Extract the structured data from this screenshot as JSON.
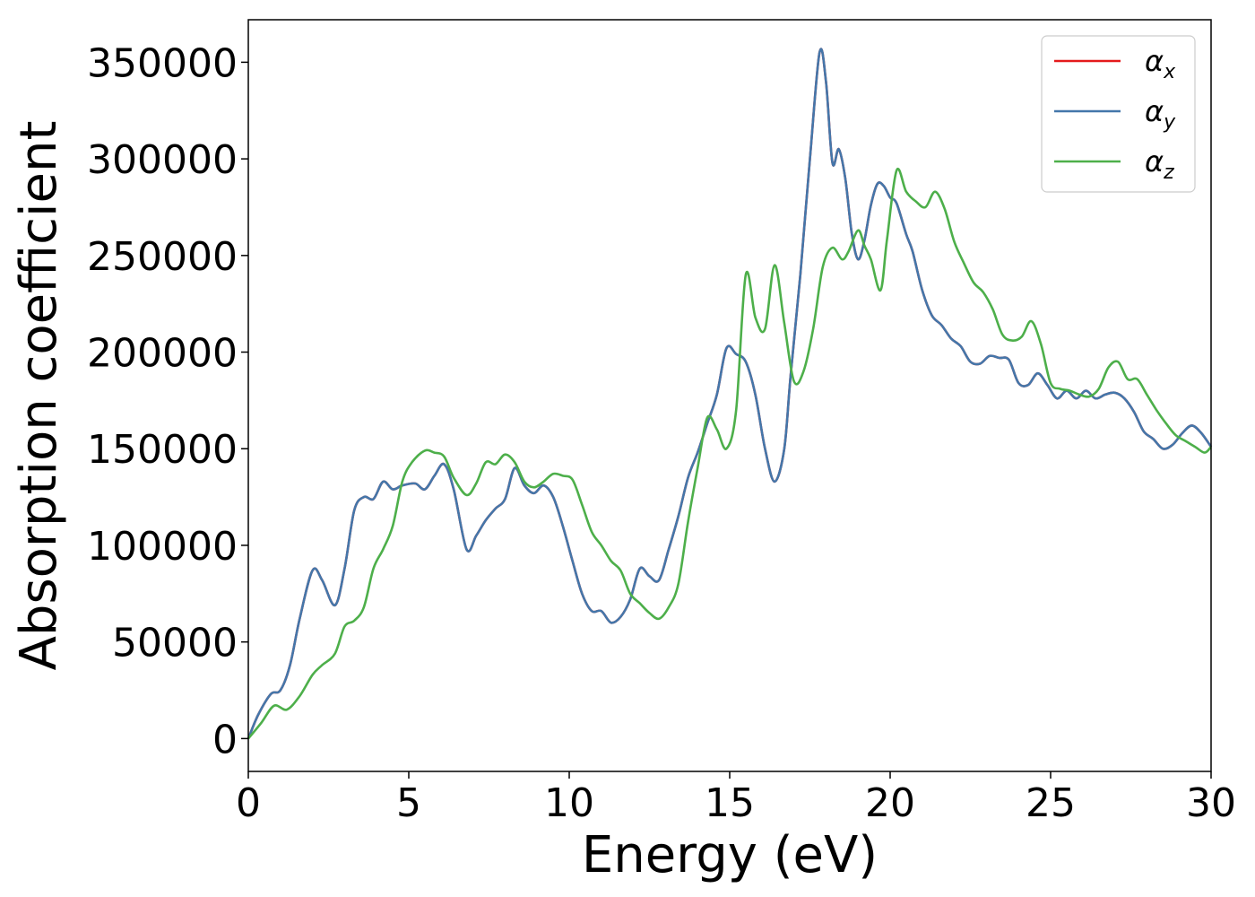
{
  "chart_data": {
    "type": "line",
    "xlabel": "Energy (eV)",
    "ylabel": "Absorption coefficient",
    "xlim": [
      0,
      30
    ],
    "ylim": [
      -17000,
      372000
    ],
    "xticks": [
      0,
      5,
      10,
      15,
      20,
      25,
      30
    ],
    "yticks": [
      0,
      50000,
      100000,
      150000,
      200000,
      250000,
      300000,
      350000
    ],
    "legend_position": "top-right",
    "grid": false,
    "series": [
      {
        "name": "α_x",
        "name_base": "α",
        "name_sub": "x",
        "color": "#e41a1c",
        "x": [
          0,
          0.3,
          0.7,
          1.0,
          1.3,
          1.6,
          2.0,
          2.3,
          2.7,
          3.0,
          3.3,
          3.6,
          3.9,
          4.2,
          4.5,
          4.8,
          5.2,
          5.5,
          5.8,
          6.1,
          6.4,
          6.8,
          7.1,
          7.4,
          7.7,
          8.0,
          8.3,
          8.6,
          8.9,
          9.2,
          9.5,
          9.8,
          10.1,
          10.4,
          10.7,
          11.0,
          11.3,
          11.6,
          11.9,
          12.2,
          12.5,
          12.8,
          13.1,
          13.4,
          13.7,
          14.0,
          14.3,
          14.6,
          14.9,
          15.2,
          15.5,
          15.8,
          16.1,
          16.4,
          16.7,
          16.9,
          17.2,
          17.5,
          17.8,
          18.0,
          18.2,
          18.4,
          18.6,
          18.8,
          19.0,
          19.2,
          19.4,
          19.6,
          19.8,
          20.0,
          20.2,
          20.5,
          20.7,
          21.0,
          21.3,
          21.6,
          21.9,
          22.2,
          22.5,
          22.8,
          23.1,
          23.4,
          23.7,
          24.0,
          24.3,
          24.6,
          24.9,
          25.2,
          25.5,
          25.8,
          26.1,
          26.4,
          26.7,
          27.0,
          27.3,
          27.6,
          27.9,
          28.2,
          28.5,
          28.8,
          29.1,
          29.4,
          29.7,
          30.0
        ],
        "y": [
          0,
          12000,
          23000,
          25000,
          38000,
          62000,
          87000,
          82000,
          69000,
          88000,
          118000,
          125000,
          124000,
          133000,
          129000,
          131000,
          132000,
          129000,
          136000,
          142000,
          129000,
          98000,
          105000,
          113000,
          119000,
          124000,
          140000,
          131000,
          127000,
          131000,
          125000,
          110000,
          92000,
          75000,
          66000,
          66000,
          60000,
          63000,
          72000,
          88000,
          84000,
          82000,
          98000,
          115000,
          135000,
          148000,
          163000,
          178000,
          202000,
          199000,
          195000,
          178000,
          150000,
          133000,
          150000,
          188000,
          240000,
          300000,
          355000,
          340000,
          298000,
          305000,
          290000,
          262000,
          248000,
          258000,
          276000,
          287000,
          286000,
          280000,
          277000,
          261000,
          252000,
          232000,
          219000,
          214000,
          207000,
          203000,
          195000,
          194000,
          198000,
          197000,
          196000,
          184000,
          183000,
          189000,
          183000,
          176000,
          180000,
          176000,
          180000,
          176000,
          178000,
          179000,
          176000,
          169000,
          159000,
          155000,
          150000,
          152000,
          158000,
          162000,
          158000,
          151000
        ]
      },
      {
        "name": "α_y",
        "name_base": "α",
        "name_sub": "y",
        "color": "#4477aa",
        "x": [
          0,
          0.3,
          0.7,
          1.0,
          1.3,
          1.6,
          2.0,
          2.3,
          2.7,
          3.0,
          3.3,
          3.6,
          3.9,
          4.2,
          4.5,
          4.8,
          5.2,
          5.5,
          5.8,
          6.1,
          6.4,
          6.8,
          7.1,
          7.4,
          7.7,
          8.0,
          8.3,
          8.6,
          8.9,
          9.2,
          9.5,
          9.8,
          10.1,
          10.4,
          10.7,
          11.0,
          11.3,
          11.6,
          11.9,
          12.2,
          12.5,
          12.8,
          13.1,
          13.4,
          13.7,
          14.0,
          14.3,
          14.6,
          14.9,
          15.2,
          15.5,
          15.8,
          16.1,
          16.4,
          16.7,
          16.9,
          17.2,
          17.5,
          17.8,
          18.0,
          18.2,
          18.4,
          18.6,
          18.8,
          19.0,
          19.2,
          19.4,
          19.6,
          19.8,
          20.0,
          20.2,
          20.5,
          20.7,
          21.0,
          21.3,
          21.6,
          21.9,
          22.2,
          22.5,
          22.8,
          23.1,
          23.4,
          23.7,
          24.0,
          24.3,
          24.6,
          24.9,
          25.2,
          25.5,
          25.8,
          26.1,
          26.4,
          26.7,
          27.0,
          27.3,
          27.6,
          27.9,
          28.2,
          28.5,
          28.8,
          29.1,
          29.4,
          29.7,
          30.0
        ],
        "y": [
          0,
          12000,
          23000,
          25000,
          38000,
          62000,
          87000,
          82000,
          69000,
          88000,
          118000,
          125000,
          124000,
          133000,
          129000,
          131000,
          132000,
          129000,
          136000,
          142000,
          129000,
          98000,
          105000,
          113000,
          119000,
          124000,
          140000,
          131000,
          127000,
          131000,
          125000,
          110000,
          92000,
          75000,
          66000,
          66000,
          60000,
          63000,
          72000,
          88000,
          84000,
          82000,
          98000,
          115000,
          135000,
          148000,
          163000,
          178000,
          202000,
          199000,
          195000,
          178000,
          150000,
          133000,
          150000,
          188000,
          240000,
          300000,
          355000,
          340000,
          298000,
          305000,
          290000,
          262000,
          248000,
          258000,
          276000,
          287000,
          286000,
          280000,
          277000,
          261000,
          252000,
          232000,
          219000,
          214000,
          207000,
          203000,
          195000,
          194000,
          198000,
          197000,
          196000,
          184000,
          183000,
          189000,
          183000,
          176000,
          180000,
          176000,
          180000,
          176000,
          178000,
          179000,
          176000,
          169000,
          159000,
          155000,
          150000,
          152000,
          158000,
          162000,
          158000,
          151000
        ]
      },
      {
        "name": "α_z",
        "name_base": "α",
        "name_sub": "z",
        "color": "#4daf4a",
        "x": [
          0,
          0.4,
          0.8,
          1.2,
          1.6,
          2.0,
          2.3,
          2.7,
          3.0,
          3.3,
          3.6,
          3.9,
          4.2,
          4.5,
          4.8,
          5.1,
          5.5,
          5.8,
          6.1,
          6.4,
          6.8,
          7.1,
          7.4,
          7.7,
          8.0,
          8.3,
          8.6,
          8.9,
          9.2,
          9.5,
          9.8,
          10.1,
          10.4,
          10.7,
          11.0,
          11.3,
          11.6,
          11.9,
          12.2,
          12.5,
          12.8,
          13.1,
          13.4,
          13.7,
          14.0,
          14.3,
          14.6,
          14.9,
          15.2,
          15.5,
          15.8,
          16.1,
          16.4,
          16.7,
          17.0,
          17.3,
          17.6,
          17.9,
          18.2,
          18.5,
          18.7,
          19.0,
          19.2,
          19.4,
          19.7,
          19.9,
          20.2,
          20.5,
          20.8,
          21.1,
          21.4,
          21.7,
          22.0,
          22.3,
          22.6,
          22.9,
          23.2,
          23.5,
          23.8,
          24.1,
          24.4,
          24.7,
          25.0,
          25.3,
          25.6,
          25.9,
          26.2,
          26.5,
          26.8,
          27.1,
          27.4,
          27.7,
          28.0,
          28.3,
          28.6,
          28.9,
          29.2,
          29.5,
          29.8,
          30.0
        ],
        "y": [
          0,
          8000,
          17000,
          15000,
          22000,
          33000,
          38000,
          44000,
          58000,
          61000,
          68000,
          88000,
          98000,
          110000,
          133000,
          143000,
          149000,
          148000,
          146000,
          135000,
          126000,
          132000,
          143000,
          142000,
          147000,
          143000,
          133000,
          130000,
          133000,
          137000,
          136000,
          134000,
          121000,
          107000,
          100000,
          92000,
          87000,
          75000,
          70000,
          65000,
          62000,
          68000,
          80000,
          112000,
          140000,
          166000,
          160000,
          150000,
          170000,
          240000,
          218000,
          212000,
          245000,
          215000,
          185000,
          190000,
          212000,
          244000,
          254000,
          248000,
          252000,
          263000,
          255000,
          248000,
          232000,
          258000,
          294000,
          283000,
          278000,
          275000,
          283000,
          274000,
          257000,
          246000,
          236000,
          231000,
          222000,
          209000,
          206000,
          208000,
          216000,
          204000,
          184000,
          181000,
          180000,
          178000,
          177000,
          181000,
          192000,
          195000,
          186000,
          186000,
          178000,
          170000,
          163000,
          157000,
          154000,
          151000,
          148000,
          151000
        ]
      }
    ]
  }
}
